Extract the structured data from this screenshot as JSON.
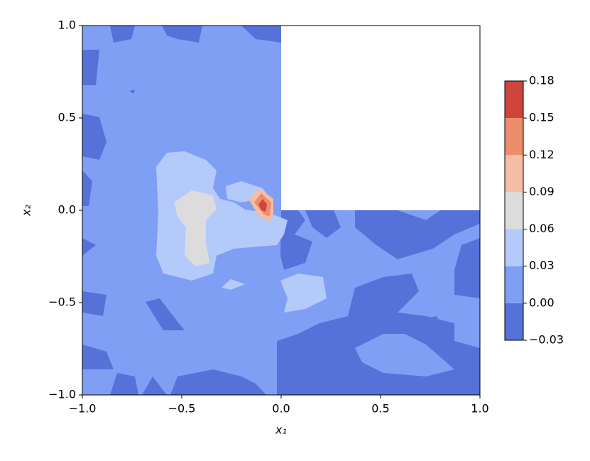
{
  "chart_data": {
    "type": "contourf",
    "xlabel": "x₁",
    "ylabel": "x₂",
    "xlim": [
      -1,
      1
    ],
    "ylim": [
      -1,
      1
    ],
    "xticks": [
      {
        "value": -1,
        "label": "−1.0"
      },
      {
        "value": -0.5,
        "label": "−0.5"
      },
      {
        "value": 0,
        "label": "0.0"
      },
      {
        "value": 0.5,
        "label": "0.5"
      },
      {
        "value": 1,
        "label": "1.0"
      }
    ],
    "yticks": [
      {
        "value": -1,
        "label": "−1.0"
      },
      {
        "value": -0.5,
        "label": "−0.5"
      },
      {
        "value": 0,
        "label": "0.0"
      },
      {
        "value": 0.5,
        "label": "0.5"
      },
      {
        "value": 1,
        "label": "1.0"
      }
    ],
    "levels": [
      -0.03,
      0,
      0.03,
      0.06,
      0.09,
      0.12,
      0.15,
      0.18
    ],
    "colors": [
      "#5572d8",
      "#7f9ff5",
      "#b3cafa",
      "#dcdcdc",
      "#f5bda3",
      "#ee8d6c",
      "#cf453c"
    ],
    "cticks": [
      {
        "value": -0.03,
        "label": "−0.03"
      },
      {
        "value": 0,
        "label": "0.00"
      },
      0.03,
      0.06,
      0.09,
      0.12,
      0.15,
      0.18
    ]
  }
}
